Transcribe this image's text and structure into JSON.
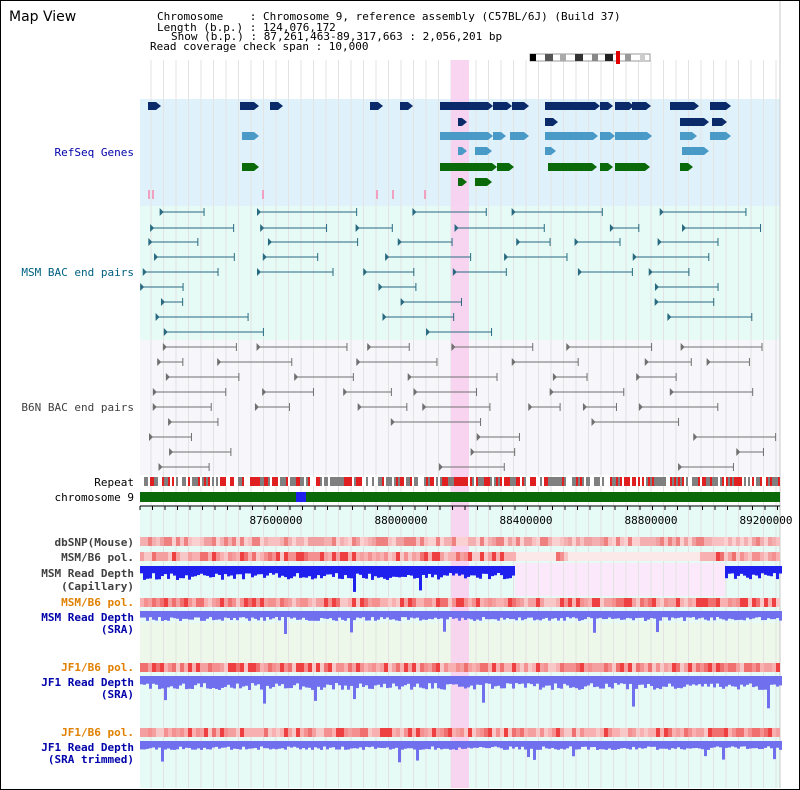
{
  "title": "Map View",
  "header": {
    "chromosome": "Chromosome    : Chromosome 9, reference assembly (C57BL/6J) (Build 37)",
    "length": "Length (b.p.) : 124,076,172",
    "show": "Show (b.p.) : 87,261,463-89,317,663 : 2,056,201 bp",
    "coverage": "Read coverage check span : 10,000"
  },
  "tracks": {
    "refseq": "RefSeq Genes",
    "msm_bac": "MSM BAC end pairs",
    "b6n_bac": "B6N BAC end pairs",
    "repeat": "Repeat",
    "chromosome": "chromosome 9",
    "dbsnp": "dbSNP(Mouse)",
    "msm_b6_pol": "MSM/B6 pol.",
    "msm_depth_cap_1": "MSM Read Depth",
    "msm_depth_cap_2": "(Capillary)",
    "msm_b6_pol2": "MSM/B6 pol.",
    "msm_depth_sra_1": "MSM Read Depth",
    "msm_depth_sra_2": "(SRA)",
    "jf1_b6_pol": "JF1/B6 pol.",
    "jf1_depth_sra_1": "JF1 Read Depth",
    "jf1_depth_sra_2": "(SRA)",
    "jf1_b6_pol2": "JF1/B6 pol.",
    "jf1_depth_trim_1": "JF1 Read Depth",
    "jf1_depth_trim_2": "(SRA trimmed)"
  },
  "axis": {
    "ticks": [
      "87600000",
      "88000000",
      "88400000",
      "88800000",
      "89200000"
    ]
  },
  "colors": {
    "gene_blue": "#0a2a6a",
    "gene_light": "#4a9ac8",
    "gene_green": "#0a6a0a",
    "bac_msm": "#2a6a80",
    "bac_b6n": "#707070",
    "label_blue": "#0000aa",
    "label_orange": "#e08000",
    "depth_blue": "#2020ee",
    "depth_light": "#7070ee",
    "highlight": "#f8d0f0"
  }
}
